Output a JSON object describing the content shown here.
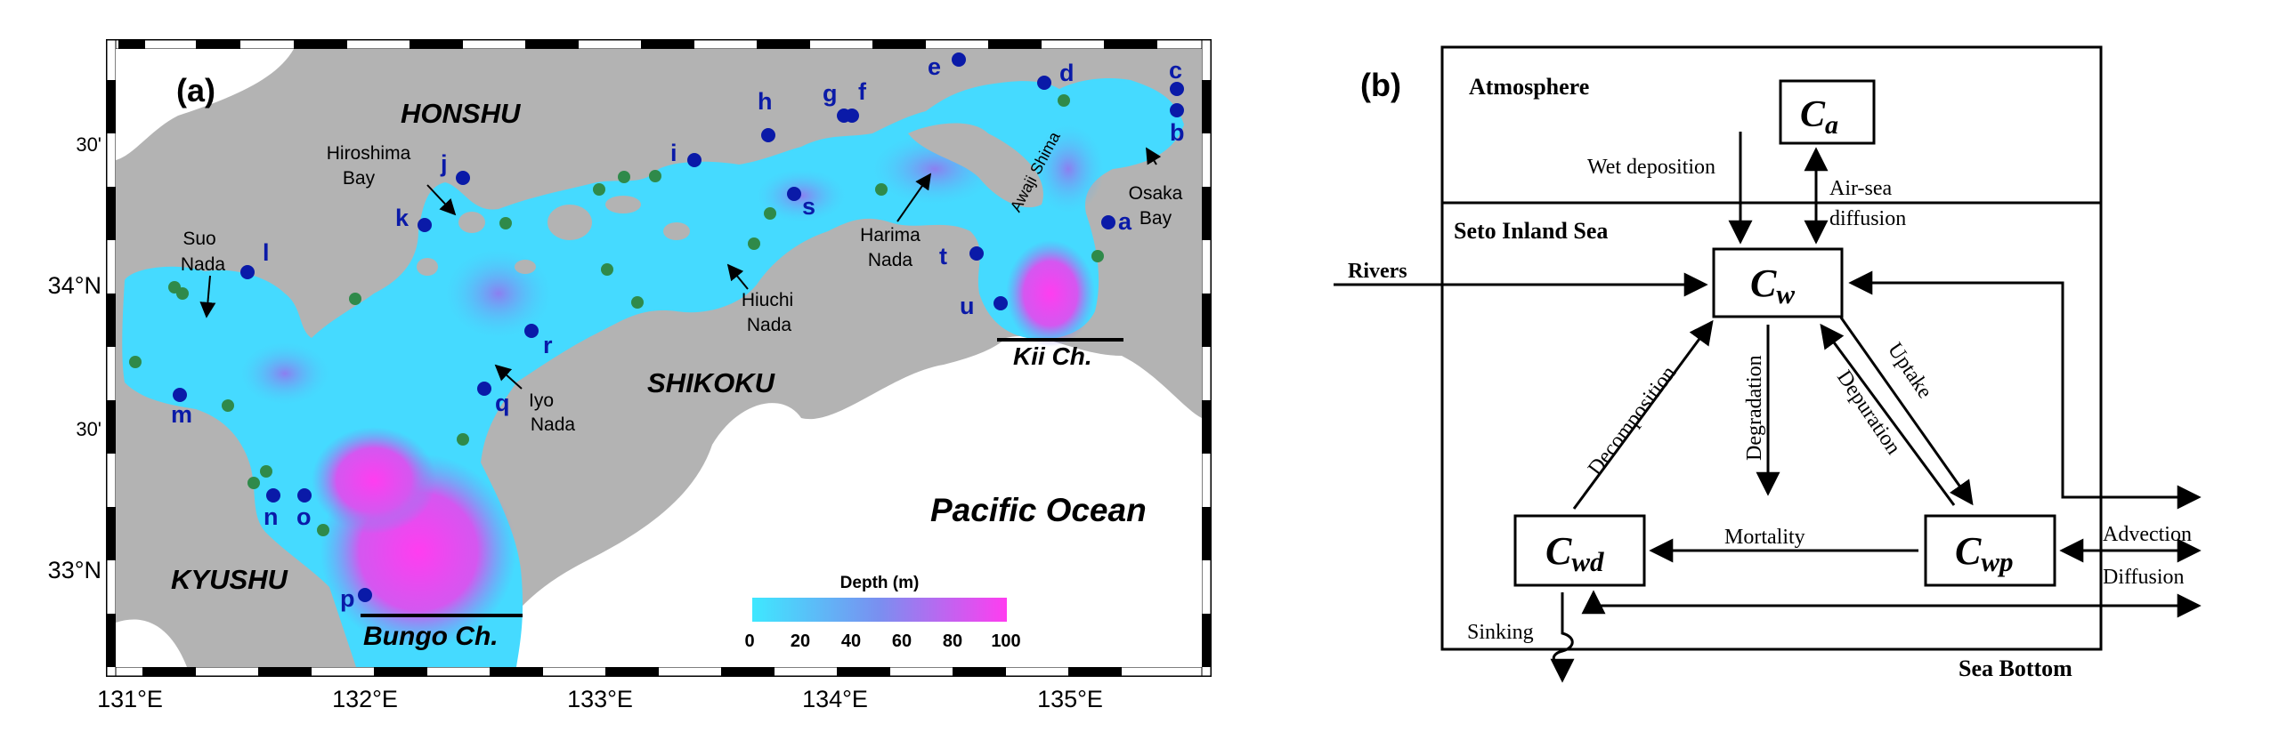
{
  "panel_a": {
    "label": "(a)",
    "regions": {
      "honshu": "HONSHU",
      "shikoku": "SHIKOKU",
      "kyushu": "KYUSHU",
      "pacific": "Pacific Ocean"
    },
    "water_labels": {
      "hiroshima_1": "Hiroshima",
      "hiroshima_2": "Bay",
      "suo_1": "Suo",
      "suo_2": "Nada",
      "iyo_1": "Iyo",
      "iyo_2": "Nada",
      "hiuchi_1": "Hiuchi",
      "hiuchi_2": "Nada",
      "harima_1": "Harima",
      "harima_2": "Nada",
      "osaka_1": "Osaka",
      "osaka_2": "Bay",
      "awaji": "Awaji Shima"
    },
    "channels": {
      "kii": "Kii Ch.",
      "bungo": "Bungo Ch."
    },
    "lat_ticks": [
      "30'",
      "34°N",
      "30'",
      "33°N"
    ],
    "lon_ticks": [
      "131°E",
      "132°E",
      "133°E",
      "134°E",
      "135°E"
    ],
    "colorbar": {
      "title": "Depth (m)",
      "ticks": [
        "0",
        "20",
        "40",
        "60",
        "80",
        "100"
      ],
      "range": [
        0,
        100
      ],
      "colors": [
        "#3ee8ff",
        "#7a8ff0",
        "#ff3df0"
      ]
    },
    "stations": [
      "a",
      "b",
      "c",
      "d",
      "e",
      "f",
      "g",
      "h",
      "i",
      "j",
      "k",
      "l",
      "m",
      "n",
      "o",
      "p",
      "q",
      "r",
      "s",
      "t",
      "u"
    ],
    "station_color": "#0a1aa8",
    "secondary_marker_color": "#2f8a4a",
    "land_color": "#b3b3b3"
  },
  "panel_b": {
    "label": "(b)",
    "compartments": {
      "atmosphere": "Atmosphere",
      "seto": "Seto Inland Sea",
      "sea_bottom": "Sea Bottom"
    },
    "nodes": {
      "ca_main": "C",
      "ca_sub": "a",
      "cw_main": "C",
      "cw_sub": "w",
      "cwd_main": "C",
      "cwd_sub": "wd",
      "cwp_main": "C",
      "cwp_sub": "wp"
    },
    "processes": {
      "wet_deposition": "Wet deposition",
      "air_sea_1": "Air-sea",
      "air_sea_2": "diffusion",
      "rivers": "Rivers",
      "decomposition": "Decomposition",
      "degradation": "Degradation",
      "depuration": "Depuration",
      "uptake": "Uptake",
      "mortality": "Mortality",
      "advection": "Advection",
      "diffusion": "Diffusion",
      "sinking": "Sinking"
    }
  }
}
